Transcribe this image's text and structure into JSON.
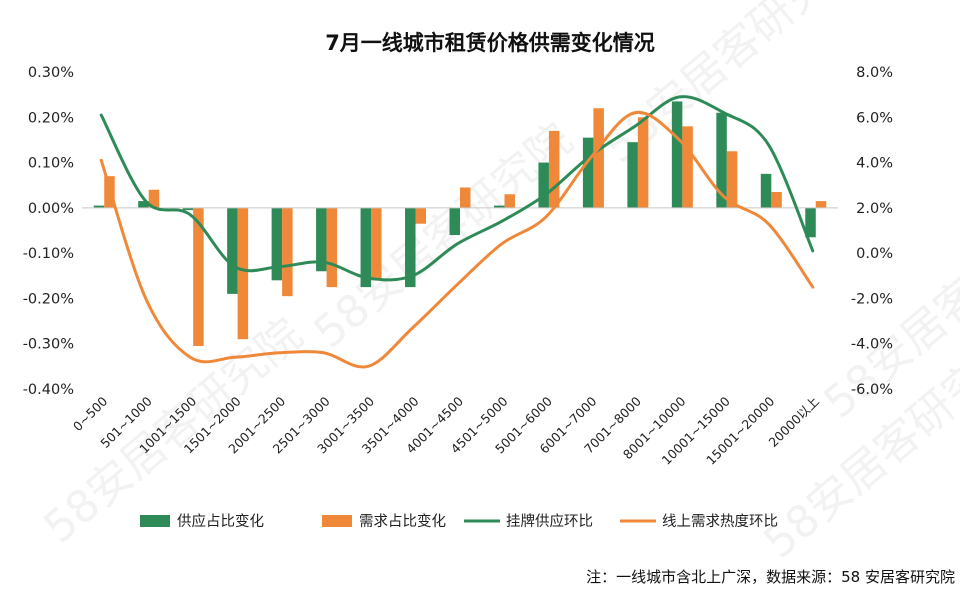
{
  "chart_data": {
    "type": "bar",
    "title": "7月一线城市租赁价格供需变化情况",
    "categories": [
      "0~500",
      "501~1000",
      "1001~1500",
      "1501~2000",
      "2001~2500",
      "2501~3000",
      "3001~3500",
      "3501~4000",
      "4001~4500",
      "4501~5000",
      "5001~6000",
      "6001~7000",
      "7001~8000",
      "8001~10000",
      "10001~15000",
      "15001~20000",
      "20000以上"
    ],
    "left_axis": {
      "ylim": [
        -0.4,
        0.3
      ],
      "ticks": [
        "0.30%",
        "0.20%",
        "0.10%",
        "0.00%",
        "-0.10%",
        "-0.20%",
        "-0.30%",
        "-0.40%"
      ]
    },
    "right_axis": {
      "ylim": [
        -6,
        8
      ],
      "ticks": [
        "8.0%",
        "6.0%",
        "4.0%",
        "2.0%",
        "0.0%",
        "-2.0%",
        "-4.0%",
        "-6.0%"
      ]
    },
    "grid": false,
    "legend_position": "bottom",
    "series": [
      {
        "name": "供应占比变化",
        "type": "bar",
        "axis": "left",
        "color": "#2e8b57",
        "values": [
          0.005,
          0.015,
          -0.005,
          -0.19,
          -0.16,
          -0.14,
          -0.175,
          -0.175,
          -0.06,
          0.005,
          0.1,
          0.155,
          0.145,
          0.235,
          0.21,
          0.075,
          -0.065
        ]
      },
      {
        "name": "需求占比变化",
        "type": "bar",
        "axis": "left",
        "color": "#f0883a",
        "values": [
          0.07,
          0.04,
          -0.305,
          -0.29,
          -0.195,
          -0.175,
          -0.16,
          -0.035,
          0.045,
          0.03,
          0.17,
          0.22,
          0.2,
          0.18,
          0.125,
          0.035,
          0.015
        ]
      },
      {
        "name": "挂牌供应环比",
        "type": "line",
        "axis": "right",
        "color": "#2e8b57",
        "values": [
          6.1,
          2.3,
          1.7,
          -0.6,
          -0.6,
          -0.4,
          -1.1,
          -1.0,
          0.4,
          1.4,
          2.6,
          4.3,
          5.6,
          6.9,
          6.2,
          4.8,
          0.1
        ]
      },
      {
        "name": "线上需求热度环比",
        "type": "line",
        "axis": "right",
        "color": "#f0883a",
        "values": [
          4.1,
          -2.0,
          -4.6,
          -4.6,
          -4.4,
          -4.4,
          -5.0,
          -3.3,
          -1.4,
          0.4,
          1.6,
          4.2,
          6.2,
          5.0,
          2.5,
          1.3,
          -1.5
        ]
      }
    ]
  },
  "watermark": {
    "text": "58安居客研究院"
  },
  "note": "注：一线城市含北上广深，数据来源：58 安居客研究院"
}
